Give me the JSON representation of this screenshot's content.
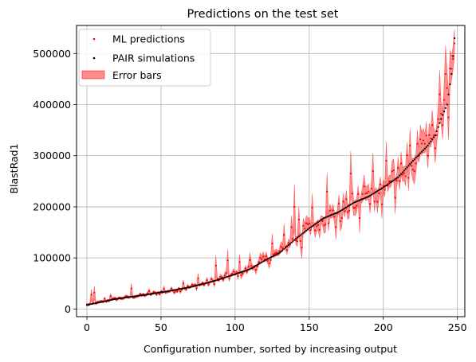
{
  "chart_data": {
    "type": "scatter",
    "title": "Predictions on the test set",
    "xlabel": "Configuration number, sorted by increasing output",
    "ylabel": "BlastRad1",
    "xlim": [
      -7,
      255
    ],
    "ylim": [
      -15000,
      555000
    ],
    "xticks": [
      0,
      50,
      100,
      150,
      200,
      250
    ],
    "xtick_labels": [
      "0",
      "50",
      "100",
      "150",
      "200",
      "250"
    ],
    "yticks": [
      0,
      100000,
      200000,
      300000,
      400000,
      500000
    ],
    "ytick_labels": [
      "0",
      "100000",
      "200000",
      "300000",
      "400000",
      "500000"
    ],
    "grid": true,
    "legend_position": "top-left",
    "n_points": 249,
    "pair_anchors": {
      "x": [
        0,
        20,
        40,
        55,
        70,
        85,
        100,
        110,
        120,
        130,
        140,
        150,
        160,
        170,
        180,
        190,
        200,
        210,
        220,
        230,
        235,
        240,
        243,
        246,
        248
      ],
      "y": [
        8000,
        20000,
        28000,
        35000,
        43000,
        54000,
        68000,
        78000,
        95000,
        110000,
        135000,
        158000,
        178000,
        190000,
        208000,
        220000,
        238000,
        258000,
        290000,
        320000,
        340000,
        380000,
        400000,
        460000,
        530000
      ]
    },
    "ml_deviation": [
      {
        "x": 3,
        "y": 28000
      },
      {
        "x": 5,
        "y": 32000
      },
      {
        "x": 12,
        "y": 20000
      },
      {
        "x": 16,
        "y": 25000
      },
      {
        "x": 30,
        "y": 40000
      },
      {
        "x": 42,
        "y": 35000
      },
      {
        "x": 52,
        "y": 40000
      },
      {
        "x": 65,
        "y": 50000
      },
      {
        "x": 75,
        "y": 60000
      },
      {
        "x": 87,
        "y": 85000
      },
      {
        "x": 95,
        "y": 95000
      },
      {
        "x": 103,
        "y": 92000
      },
      {
        "x": 110,
        "y": 96000
      },
      {
        "x": 117,
        "y": 100000
      },
      {
        "x": 125,
        "y": 128000
      },
      {
        "x": 133,
        "y": 145000
      },
      {
        "x": 138,
        "y": 160000
      },
      {
        "x": 140,
        "y": 200000
      },
      {
        "x": 143,
        "y": 175000
      },
      {
        "x": 145,
        "y": 120000
      },
      {
        "x": 148,
        "y": 168000
      },
      {
        "x": 152,
        "y": 198000
      },
      {
        "x": 155,
        "y": 162000
      },
      {
        "x": 158,
        "y": 175000
      },
      {
        "x": 162,
        "y": 230000
      },
      {
        "x": 165,
        "y": 185000
      },
      {
        "x": 168,
        "y": 160000
      },
      {
        "x": 171,
        "y": 172000
      },
      {
        "x": 175,
        "y": 215000
      },
      {
        "x": 178,
        "y": 265000
      },
      {
        "x": 181,
        "y": 198000
      },
      {
        "x": 184,
        "y": 178000
      },
      {
        "x": 187,
        "y": 240000
      },
      {
        "x": 190,
        "y": 230000
      },
      {
        "x": 193,
        "y": 270000
      },
      {
        "x": 196,
        "y": 210000
      },
      {
        "x": 199,
        "y": 205000
      },
      {
        "x": 202,
        "y": 290000
      },
      {
        "x": 205,
        "y": 250000
      },
      {
        "x": 208,
        "y": 218000
      },
      {
        "x": 212,
        "y": 285000
      },
      {
        "x": 215,
        "y": 260000
      },
      {
        "x": 218,
        "y": 320000
      },
      {
        "x": 221,
        "y": 270000
      },
      {
        "x": 224,
        "y": 300000
      },
      {
        "x": 227,
        "y": 330000
      },
      {
        "x": 230,
        "y": 300000
      },
      {
        "x": 233,
        "y": 360000
      },
      {
        "x": 236,
        "y": 340000
      },
      {
        "x": 238,
        "y": 420000
      },
      {
        "x": 240,
        "y": 360000
      },
      {
        "x": 242,
        "y": 460000
      },
      {
        "x": 244,
        "y": 375000
      },
      {
        "x": 246,
        "y": 470000
      },
      {
        "x": 247,
        "y": 490000
      },
      {
        "x": 248,
        "y": 520000
      }
    ],
    "series": [
      {
        "name": "ML predictions",
        "color": "#ff0000",
        "marker": "dot"
      },
      {
        "name": "PAIR simulations",
        "color": "#000000",
        "marker": "dot"
      },
      {
        "name": "Error bars",
        "color": "#ff0000",
        "fill_alpha": 0.45,
        "marker": "band"
      }
    ]
  }
}
